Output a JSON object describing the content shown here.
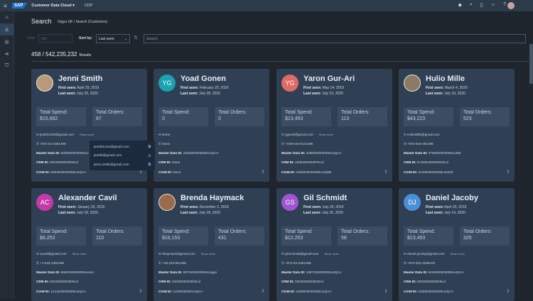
{
  "topbar": {
    "logo": "SAP",
    "product": "Customer Data Cloud",
    "product_caret": "▾",
    "context": "CDP",
    "icons": [
      "cube-icon",
      "search-icon",
      "bell-icon",
      "settings-icon",
      "help-icon"
    ]
  },
  "sidebar": {
    "items": [
      "home-icon",
      "user-icon",
      "target-icon",
      "share-icon",
      "shield-icon"
    ],
    "active": 1
  },
  "header": {
    "title": "Search",
    "breadcrumb": "Gigya UK / Search (Customers)"
  },
  "filters": {
    "view_label": "View:",
    "view_value": "Nth",
    "sort_label": "Sort by:",
    "sort_value": "Last seen",
    "search_placeholder": "Search"
  },
  "results": {
    "count": "458 / 542,235,232",
    "label": "Results"
  },
  "labels": {
    "first_seen": "First seen:",
    "last_seen": "Last seen:",
    "total_spend": "Total Spend:",
    "total_orders": "Total Orders:",
    "master": "Master Data ID:",
    "crm": "CRM ID:",
    "ciam": "CIAM ID:",
    "show_more": "Show more"
  },
  "email_popup": [
    "jsmith1234@gmail.com",
    "jsmith@gmail.com",
    "jenni.smith@gmail.com"
  ],
  "cards": [
    {
      "name": "Jenni Smith",
      "initials": "",
      "photo": true,
      "color": "#b89a7a",
      "first": "April 29, 2019",
      "last": "July 29, 2020",
      "spend": "$15,682",
      "orders": "87",
      "email": "jsmith1234@gmail.com",
      "more": true,
      "phone": "+972-54-4481498",
      "master": "50030000000D8cu...",
      "crm": "50030000000D8cul",
      "ciam": "50030000000D8cuIQAA"
    },
    {
      "name": "Yoad Gonen",
      "initials": "YG",
      "photo": false,
      "color": "#1aa3b0",
      "first": "February 20, 2020",
      "last": "July 28, 2020",
      "spend": "0",
      "orders": "0",
      "email": "None",
      "more": false,
      "phone": "None",
      "master": "23400000000D8cuIQAA",
      "crm": "None",
      "ciam": "None"
    },
    {
      "name": "Yaron Gur-Ari",
      "initials": "YG",
      "photo": false,
      "color": "#e06a66",
      "first": "May 14, 2019",
      "last": "July 23, 2020",
      "spend": "$13,453",
      "orders": "113",
      "email": "ygurari@gmail.com",
      "more": true,
      "phone": "+049-544-5141498",
      "master": "33900000000D8cuIQAA",
      "crm": "18963000000PRcul",
      "ciam": "19920000000D8cuIQBB"
    },
    {
      "name": "Hulio Mille",
      "initials": "",
      "photo": true,
      "color": "#8a7a66",
      "first": "March 4, 2020",
      "last": "July 19, 2020",
      "spend": "$43,223",
      "orders": "523",
      "email": "HulioMille@gmail.com",
      "more": false,
      "phone": "+972-544-481498",
      "master": "97992000000D8cuIEE",
      "crm": "NA9901000000D8cul",
      "ciam": "91288390000D8cu0433"
    },
    {
      "name": "Alexander Cavil",
      "initials": "AC",
      "photo": false,
      "color": "#c43aa6",
      "first": "January 20, 2019",
      "last": "July 18, 2020",
      "spend": "$9,253",
      "orders": "110",
      "email": "acavil@gmail.com",
      "more": true,
      "phone": "+1-544-2391498",
      "master": "66801000000D8cuIvcc",
      "crm": "50330000000D8cul",
      "ciam": "12126400000D8cuIQAA"
    },
    {
      "name": "Brenda Haymack",
      "initials": "",
      "photo": true,
      "color": "#9a6a4a",
      "first": "December 2, 2018",
      "last": "July 18, 2020",
      "spend": "$16,153",
      "orders": "431",
      "email": "bhaymack@gmail.com",
      "more": true,
      "phone": "+49-233-551498",
      "master": "98791000000D8cuIppx",
      "crm": "50030000000D8cul",
      "ciam": "12290000D8cuIQAA"
    },
    {
      "name": "Gil Schmidt",
      "initials": "GS",
      "photo": false,
      "color": "#a054d0",
      "first": "July 20, 2019",
      "last": "July 25, 2020",
      "spend": "$12,253",
      "orders": "58",
      "email": "gil.schmidt@gmail.com",
      "more": true,
      "phone": "+972-54-4481498",
      "master": "19973400000D8cuIQAA",
      "crm": "50330000000D8cul",
      "ciam": "34899000000D8cuIQAA"
    },
    {
      "name": "Daniel Jacoby",
      "initials": "DJ",
      "photo": false,
      "color": "#4a90d8",
      "first": "April 20, 2019",
      "last": "July 14, 2020",
      "spend": "$13,453",
      "orders": "325",
      "email": "daniel.jacoby@gmail.com",
      "more": true,
      "phone": "+972-522-4298433",
      "master": "50030000000D8cuIQAA",
      "crm": "50030000000D8cul",
      "ciam": "23350000000D8cuIQAA"
    }
  ]
}
